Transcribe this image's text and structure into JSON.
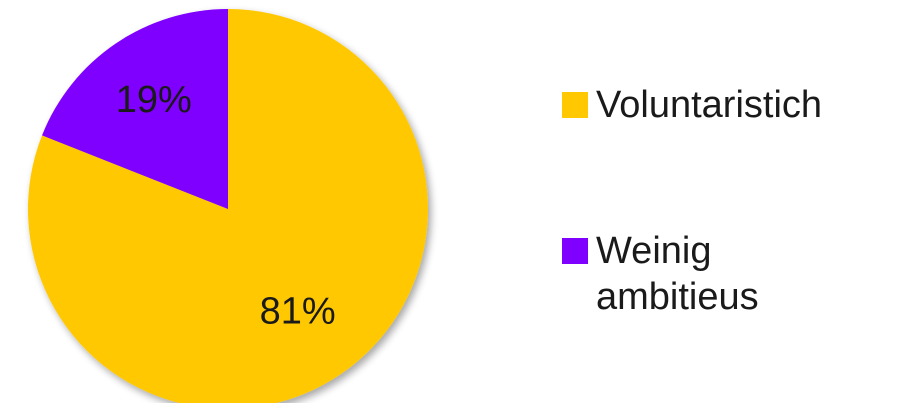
{
  "chart_data": {
    "type": "pie",
    "categories": [
      "Voluntaristich",
      "Weinig ambitieus"
    ],
    "values": [
      81,
      19
    ],
    "labels": [
      "81%",
      "19%"
    ],
    "colors": [
      "#FFC800",
      "#7F00FF"
    ],
    "title": "",
    "legend_position": "right",
    "legend": [
      {
        "lines": [
          "Voluntaristich"
        ]
      },
      {
        "lines": [
          "Weinig",
          "ambitieus"
        ]
      }
    ]
  }
}
